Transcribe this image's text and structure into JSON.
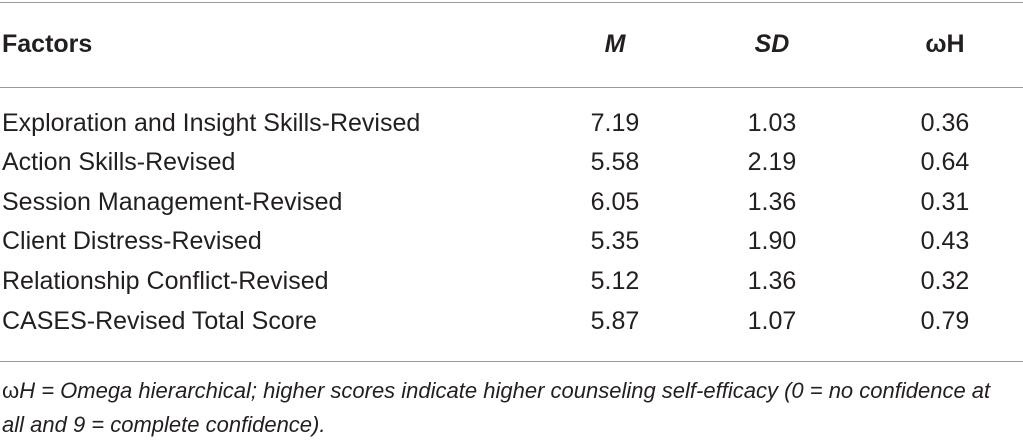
{
  "table": {
    "headers": {
      "factor": "Factors",
      "m": "M",
      "sd": "SD",
      "omega": "ωH"
    },
    "rows": [
      {
        "factor": "Exploration and Insight Skills-Revised",
        "m": "7.19",
        "sd": "1.03",
        "omega": "0.36"
      },
      {
        "factor": "Action Skills-Revised",
        "m": "5.58",
        "sd": "2.19",
        "omega": "0.64"
      },
      {
        "factor": "Session Management-Revised",
        "m": "6.05",
        "sd": "1.36",
        "omega": "0.31"
      },
      {
        "factor": "Client Distress-Revised",
        "m": "5.35",
        "sd": "1.90",
        "omega": "0.43"
      },
      {
        "factor": "Relationship Conflict-Revised",
        "m": "5.12",
        "sd": "1.36",
        "omega": "0.32"
      },
      {
        "factor": "CASES-Revised Total Score",
        "m": "5.87",
        "sd": "1.07",
        "omega": "0.79"
      }
    ]
  },
  "note": {
    "omega_symbol": "ω",
    "text": "H = Omega hierarchical; higher scores indicate higher counseling self-efficacy (0 = no confidence at all and 9 = complete confidence)."
  }
}
